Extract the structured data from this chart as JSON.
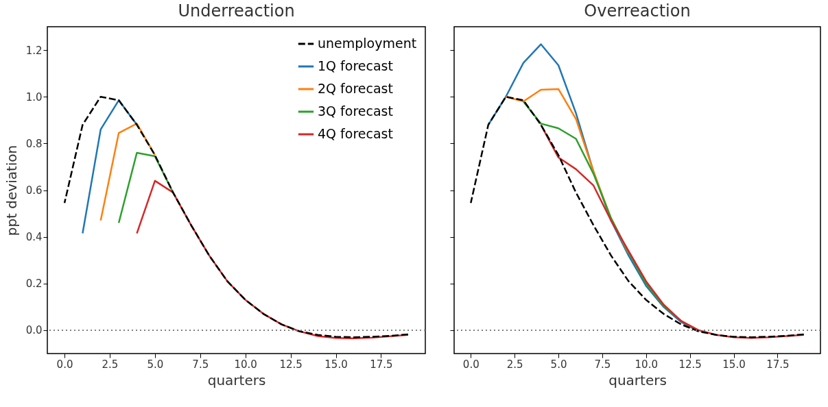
{
  "chart_data": [
    {
      "type": "line",
      "title": "Underreaction",
      "xlabel": "quarters",
      "ylabel": "ppt deviation",
      "xlim": [
        -0.95,
        19.95
      ],
      "ylim": [
        -0.1,
        1.3
      ],
      "xticks": [
        {
          "value": 0,
          "label": "0.0"
        },
        {
          "value": 2.5,
          "label": "2.5"
        },
        {
          "value": 5,
          "label": "5.0"
        },
        {
          "value": 7.5,
          "label": "7.5"
        },
        {
          "value": 10,
          "label": "10.0"
        },
        {
          "value": 12.5,
          "label": "12.5"
        },
        {
          "value": 15,
          "label": "15.0"
        },
        {
          "value": 17.5,
          "label": "17.5"
        }
      ],
      "yticks": [
        {
          "value": 0,
          "label": "0.0"
        },
        {
          "value": 0.2,
          "label": "0.2"
        },
        {
          "value": 0.4,
          "label": "0.4"
        },
        {
          "value": 0.6,
          "label": "0.6"
        },
        {
          "value": 0.8,
          "label": "0.8"
        },
        {
          "value": 1.0,
          "label": "1.0"
        },
        {
          "value": 1.2,
          "label": "1.2"
        }
      ],
      "legend": "top right",
      "grid": false,
      "ref_lines": [
        {
          "axis": "y",
          "value": 0,
          "color": "#808080",
          "line_style": "dotted"
        }
      ],
      "series": [
        {
          "name": "unemployment",
          "color": "#000000",
          "line_style": "dashed",
          "x": [
            0,
            1,
            2,
            3,
            4,
            5,
            6,
            7,
            8,
            9,
            10,
            11,
            12,
            13,
            14,
            15,
            16,
            17,
            18,
            19
          ],
          "values": [
            0.545,
            0.88,
            1.0,
            0.985,
            0.88,
            0.75,
            0.59,
            0.45,
            0.32,
            0.21,
            0.13,
            0.07,
            0.025,
            -0.005,
            -0.02,
            -0.028,
            -0.03,
            -0.028,
            -0.024,
            -0.018
          ]
        },
        {
          "name": "1Q forecast",
          "color": "#1f77b4",
          "line_style": "solid",
          "x": [
            1,
            2,
            3,
            4
          ],
          "values": [
            0.415,
            0.86,
            0.985,
            0.88
          ]
        },
        {
          "name": "2Q forecast",
          "color": "#ff7f0e",
          "line_style": "solid",
          "x": [
            2,
            3,
            4,
            5
          ],
          "values": [
            0.47,
            0.845,
            0.885,
            0.75
          ]
        },
        {
          "name": "3Q forecast",
          "color": "#2ca02c",
          "line_style": "solid",
          "x": [
            3,
            4,
            5,
            6
          ],
          "values": [
            0.46,
            0.76,
            0.745,
            0.59
          ]
        },
        {
          "name": "4Q forecast",
          "color": "#d62728",
          "line_style": "solid",
          "x": [
            4,
            5,
            6,
            7,
            8,
            9,
            10,
            11,
            12,
            13,
            14,
            15,
            16,
            17,
            18,
            19
          ],
          "values": [
            0.415,
            0.64,
            0.59,
            0.45,
            0.32,
            0.21,
            0.13,
            0.07,
            0.025,
            -0.005,
            -0.025,
            -0.033,
            -0.035,
            -0.032,
            -0.026,
            -0.02
          ]
        }
      ]
    },
    {
      "type": "line",
      "title": "Overreaction",
      "xlabel": "quarters",
      "xlim": [
        -0.95,
        19.95
      ],
      "ylim": [
        -0.1,
        1.3
      ],
      "xticks": [
        {
          "value": 0,
          "label": "0.0"
        },
        {
          "value": 2.5,
          "label": "2.5"
        },
        {
          "value": 5,
          "label": "5.0"
        },
        {
          "value": 7.5,
          "label": "7.5"
        },
        {
          "value": 10,
          "label": "10.0"
        },
        {
          "value": 12.5,
          "label": "12.5"
        },
        {
          "value": 15,
          "label": "15.0"
        },
        {
          "value": 17.5,
          "label": "17.5"
        }
      ],
      "yticks": [
        {
          "value": 0,
          "label": null
        },
        {
          "value": 0.2,
          "label": null
        },
        {
          "value": 0.4,
          "label": null
        },
        {
          "value": 0.6,
          "label": null
        },
        {
          "value": 0.8,
          "label": null
        },
        {
          "value": 1.0,
          "label": null
        },
        {
          "value": 1.2,
          "label": null
        }
      ],
      "tick_labels": "x",
      "grid": false,
      "ref_lines": [
        {
          "axis": "y",
          "value": 0,
          "color": "#808080",
          "line_style": "dotted"
        }
      ],
      "series": [
        {
          "color": "#000000",
          "line_style": "dashed",
          "x": [
            0,
            1,
            2,
            3,
            4,
            5,
            6,
            7,
            8,
            9,
            10,
            11,
            12,
            13,
            14,
            15,
            16,
            17,
            18,
            19
          ],
          "values": [
            0.545,
            0.88,
            1.0,
            0.985,
            0.88,
            0.75,
            0.59,
            0.45,
            0.32,
            0.21,
            0.13,
            0.07,
            0.025,
            -0.005,
            -0.02,
            -0.028,
            -0.03,
            -0.028,
            -0.024,
            -0.018
          ]
        },
        {
          "color": "#1f77b4",
          "line_style": "solid",
          "x": [
            1,
            2,
            3,
            4,
            5,
            6,
            7,
            8,
            9,
            10,
            11,
            12,
            13
          ],
          "values": [
            0.88,
            1.0,
            1.145,
            1.225,
            1.135,
            0.93,
            0.68,
            0.47,
            0.32,
            0.19,
            0.1,
            0.035,
            -0.005
          ]
        },
        {
          "color": "#ff7f0e",
          "line_style": "solid",
          "x": [
            2,
            3,
            4,
            5,
            6,
            7,
            8,
            9
          ],
          "values": [
            1.0,
            0.98,
            1.03,
            1.033,
            0.905,
            0.68,
            0.48,
            0.33
          ]
        },
        {
          "color": "#2ca02c",
          "line_style": "solid",
          "x": [
            3,
            4,
            5,
            6,
            7,
            8,
            9,
            10,
            11,
            12,
            13
          ],
          "values": [
            0.98,
            0.885,
            0.865,
            0.82,
            0.67,
            0.48,
            0.335,
            0.2,
            0.105,
            0.04,
            -0.003
          ]
        },
        {
          "color": "#d62728",
          "line_style": "solid",
          "x": [
            4,
            5,
            6,
            7,
            8,
            9,
            10,
            11,
            12,
            13,
            14,
            15,
            16,
            17,
            18,
            19
          ],
          "values": [
            0.88,
            0.74,
            0.69,
            0.62,
            0.47,
            0.34,
            0.21,
            0.11,
            0.04,
            0.0,
            -0.02,
            -0.03,
            -0.033,
            -0.03,
            -0.025,
            -0.02
          ]
        }
      ]
    }
  ]
}
